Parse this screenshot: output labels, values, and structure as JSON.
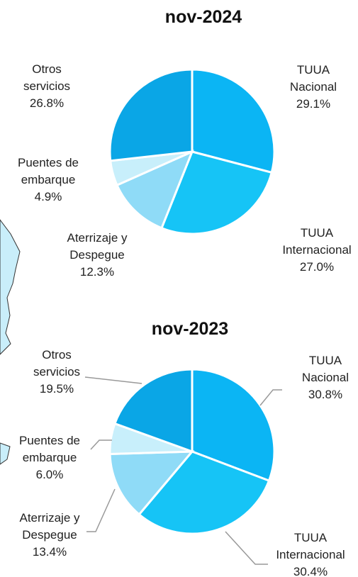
{
  "chart_data": [
    {
      "type": "pie",
      "title": "nov-2024",
      "categories": [
        [
          "TUUA",
          "Nacional"
        ],
        [
          "TUUA",
          "Internacional"
        ],
        [
          "Aterrizaje y",
          "Despegue"
        ],
        [
          "Puentes de",
          "embarque"
        ],
        [
          "Otros",
          "servicios"
        ]
      ],
      "values": [
        29.1,
        27.0,
        12.3,
        4.9,
        26.8
      ],
      "value_labels": [
        "29.1%",
        "27.0%",
        "12.3%",
        "4.9%",
        "26.8%"
      ],
      "colors": [
        "#0bb5f4",
        "#16c4f6",
        "#8fdbf7",
        "#c8effb",
        "#0aa6e6"
      ]
    },
    {
      "type": "pie",
      "title": "nov-2023",
      "categories": [
        [
          "TUUA",
          "Nacional"
        ],
        [
          "TUUA",
          "Internacional"
        ],
        [
          "Aterrizaje y",
          "Despegue"
        ],
        [
          "Puentes de",
          "embarque"
        ],
        [
          "Otros",
          "servicios"
        ]
      ],
      "values": [
        30.8,
        30.4,
        13.4,
        6.0,
        19.5
      ],
      "value_labels": [
        "30.8%",
        "30.4%",
        "13.4%",
        "6.0%",
        "19.5%"
      ],
      "colors": [
        "#0bb5f4",
        "#16c4f6",
        "#8fdbf7",
        "#c8effb",
        "#0aa6e6"
      ]
    }
  ]
}
